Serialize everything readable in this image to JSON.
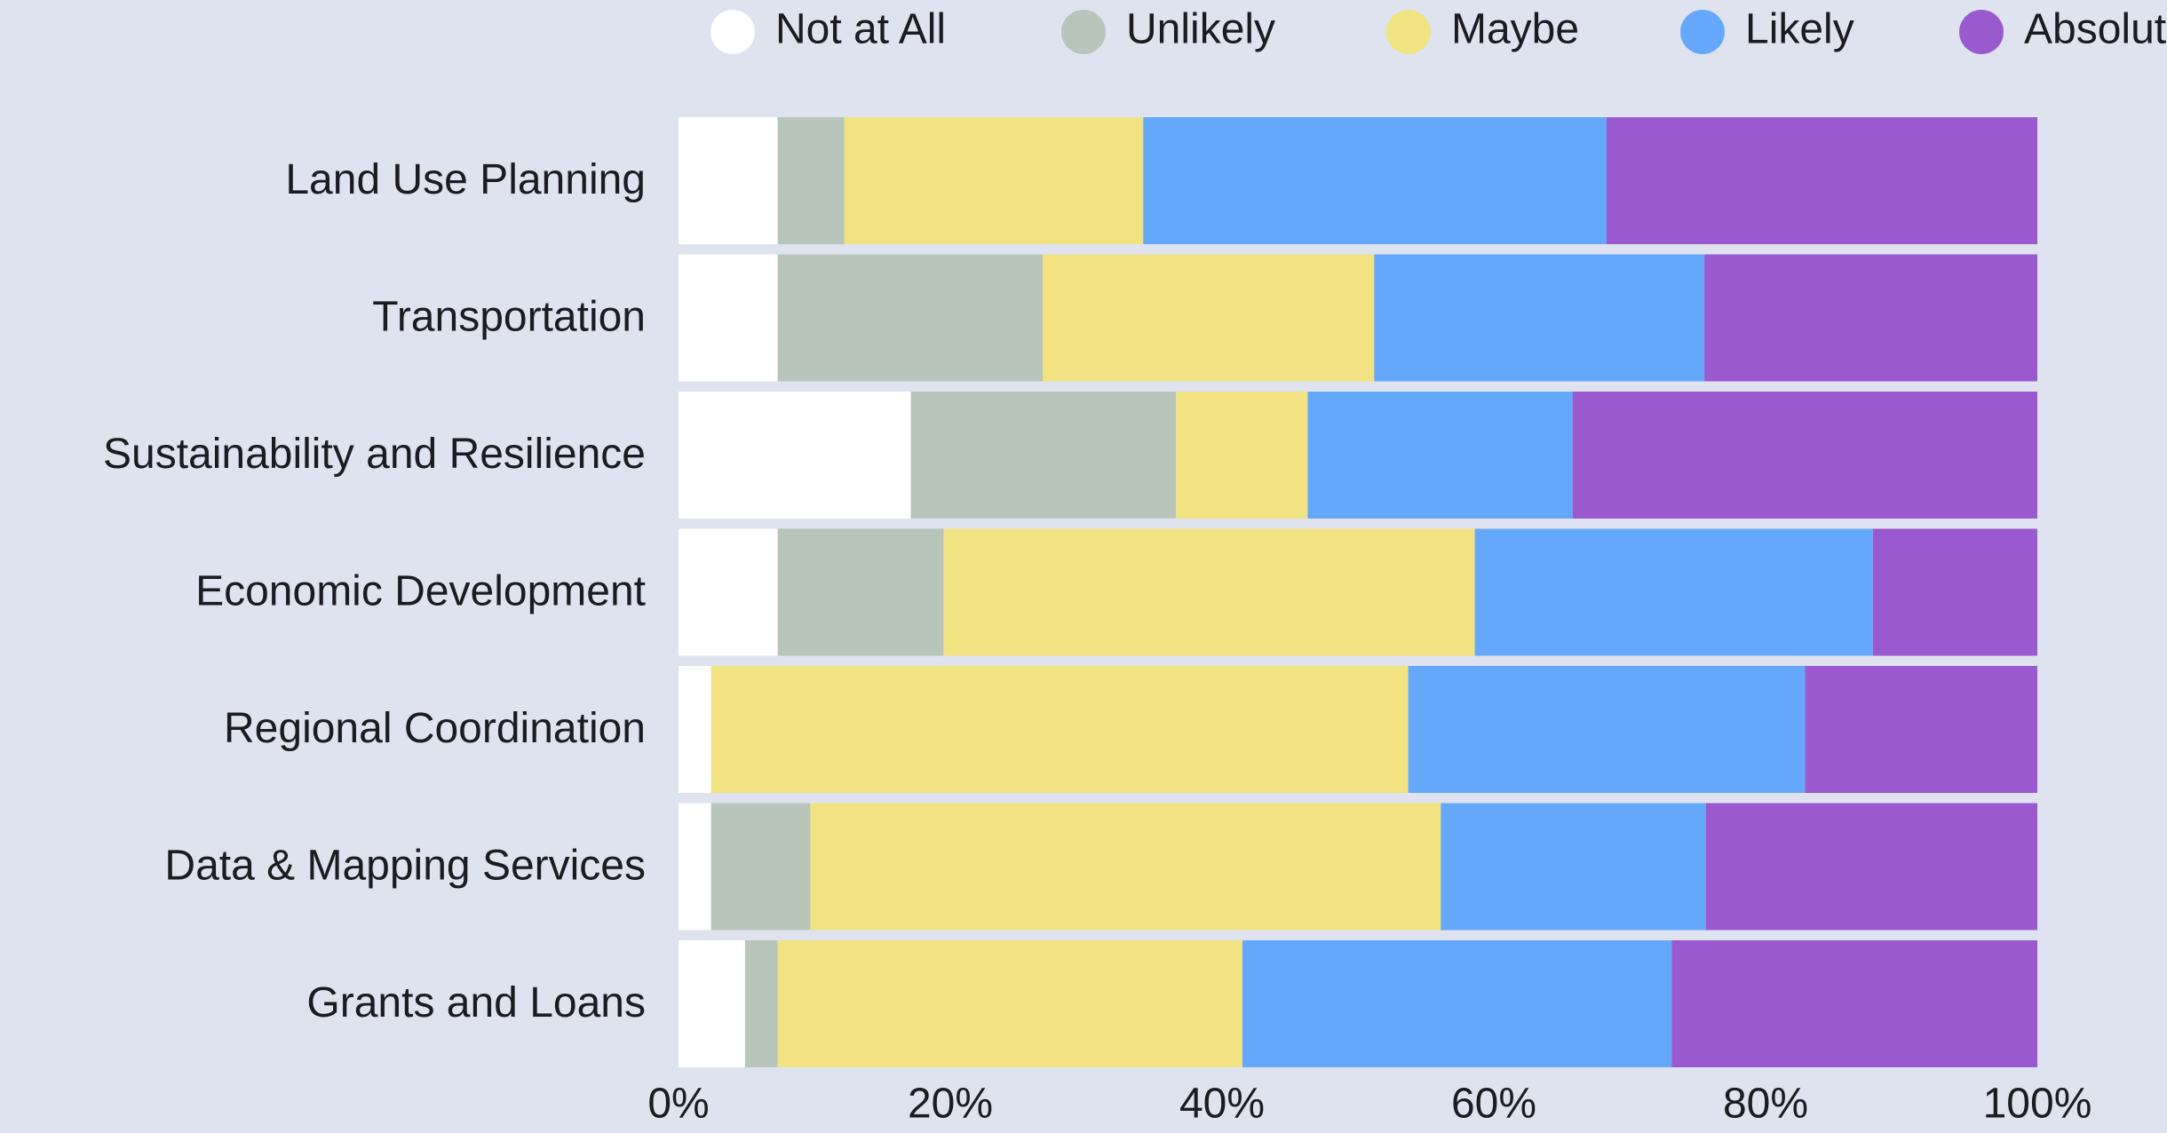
{
  "chart_data": {
    "type": "stacked-bar-horizontal",
    "categories": [
      "Land Use Planning",
      "Transportation",
      "Sustainability and Resilience",
      "Economic Development",
      "Regional Coordination",
      "Data & Mapping Services",
      "Grants and Loans"
    ],
    "series": [
      {
        "name": "Not at All",
        "color": "#ffffff",
        "values": [
          7.3,
          7.3,
          17.1,
          7.3,
          2.4,
          2.4,
          4.9
        ]
      },
      {
        "name": "Unlikely",
        "color": "#b7c5bb",
        "values": [
          4.9,
          19.5,
          19.5,
          12.2,
          0,
          7.3,
          2.4
        ]
      },
      {
        "name": "Maybe",
        "color": "#f1e282",
        "values": [
          22,
          24.4,
          9.7,
          39.1,
          51.3,
          46.4,
          34.2
        ]
      },
      {
        "name": "Likely",
        "color": "#65a8fb",
        "values": [
          34.1,
          24.3,
          19.5,
          29.3,
          29.2,
          19.5,
          31.6
        ]
      },
      {
        "name": "Absolutely",
        "color": "#9b59cf",
        "values": [
          31.7,
          24.5,
          34.2,
          12.1,
          17.1,
          24.4,
          26.9
        ]
      }
    ],
    "xlim": [
      0,
      100
    ],
    "xticks": [
      {
        "value": 0,
        "label": "0%"
      },
      {
        "value": 20,
        "label": "20%"
      },
      {
        "value": 40,
        "label": "40%"
      },
      {
        "value": 60,
        "label": "60%"
      },
      {
        "value": 80,
        "label": "80%"
      },
      {
        "value": 100,
        "label": "100%"
      }
    ]
  }
}
